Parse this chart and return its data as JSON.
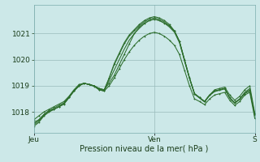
{
  "background_color": "#cce8e8",
  "plot_bg_color": "#cce8e8",
  "grid_color": "#99bbbb",
  "line_color": "#2d6e2d",
  "ylim": [
    1017.2,
    1022.1
  ],
  "yticks": [
    1018,
    1019,
    1020,
    1021
  ],
  "xlabel": "Pression niveau de la mer( hPa )",
  "xtick_labels": [
    "Jeu",
    "Ven",
    "S"
  ],
  "xtick_positions": [
    0,
    24,
    44
  ],
  "label_fontsize": 7,
  "tick_fontsize": 6.5,
  "series": [
    [
      1017.6,
      1017.7,
      1017.9,
      1018.05,
      1018.1,
      1018.2,
      1018.3,
      1018.55,
      1018.8,
      1019.0,
      1019.1,
      1019.05,
      1019.0,
      1018.9,
      1018.85,
      1019.1,
      1019.4,
      1019.8,
      1020.2,
      1020.6,
      1021.0,
      1021.25,
      1021.4,
      1021.5,
      1021.55,
      1021.5,
      1021.4,
      1021.3,
      1021.1,
      1020.7,
      1020.0,
      1019.3,
      1018.7,
      1018.55,
      1018.4,
      1018.65,
      1018.8,
      1018.85,
      1018.9,
      1018.55,
      1018.35,
      1018.5,
      1018.7,
      1018.8,
      1017.9
    ],
    [
      1017.5,
      1017.65,
      1017.85,
      1018.0,
      1018.1,
      1018.2,
      1018.3,
      1018.55,
      1018.8,
      1019.0,
      1019.1,
      1019.05,
      1019.0,
      1018.9,
      1018.85,
      1019.3,
      1019.8,
      1020.2,
      1020.6,
      1020.9,
      1021.1,
      1021.3,
      1021.45,
      1021.55,
      1021.6,
      1021.55,
      1021.45,
      1021.3,
      1021.1,
      1020.7,
      1020.0,
      1019.3,
      1018.7,
      1018.55,
      1018.4,
      1018.65,
      1018.8,
      1018.85,
      1018.9,
      1018.55,
      1018.35,
      1018.5,
      1018.75,
      1018.9,
      1017.85
    ],
    [
      1017.7,
      1017.85,
      1018.0,
      1018.1,
      1018.2,
      1018.3,
      1018.4,
      1018.6,
      1018.85,
      1019.05,
      1019.1,
      1019.05,
      1019.0,
      1018.85,
      1018.8,
      1019.3,
      1019.85,
      1020.25,
      1020.65,
      1020.95,
      1021.15,
      1021.35,
      1021.5,
      1021.6,
      1021.65,
      1021.6,
      1021.5,
      1021.35,
      1021.1,
      1020.7,
      1020.0,
      1019.3,
      1018.7,
      1018.55,
      1018.4,
      1018.65,
      1018.85,
      1018.9,
      1018.95,
      1018.65,
      1018.45,
      1018.6,
      1018.85,
      1019.0,
      1017.95
    ],
    [
      1017.55,
      1017.7,
      1017.9,
      1018.05,
      1018.15,
      1018.25,
      1018.35,
      1018.58,
      1018.82,
      1019.02,
      1019.1,
      1019.05,
      1019.0,
      1018.88,
      1018.82,
      1019.2,
      1019.6,
      1020.0,
      1020.4,
      1020.75,
      1021.0,
      1021.2,
      1021.38,
      1021.5,
      1021.55,
      1021.5,
      1021.4,
      1021.25,
      1021.05,
      1020.65,
      1019.95,
      1019.28,
      1018.68,
      1018.53,
      1018.38,
      1018.63,
      1018.78,
      1018.83,
      1018.88,
      1018.53,
      1018.33,
      1018.48,
      1018.72,
      1018.85,
      1017.88
    ],
    [
      1017.45,
      1017.6,
      1017.85,
      1018.0,
      1018.1,
      1018.2,
      1018.32,
      1018.55,
      1018.82,
      1019.0,
      1019.1,
      1019.05,
      1018.98,
      1018.85,
      1018.8,
      1019.0,
      1019.3,
      1019.65,
      1020.0,
      1020.3,
      1020.55,
      1020.75,
      1020.9,
      1021.0,
      1021.05,
      1021.0,
      1020.9,
      1020.75,
      1020.55,
      1020.2,
      1019.6,
      1019.0,
      1018.5,
      1018.4,
      1018.28,
      1018.5,
      1018.65,
      1018.7,
      1018.75,
      1018.45,
      1018.25,
      1018.4,
      1018.65,
      1018.75,
      1017.75
    ]
  ],
  "marker_series": [
    0,
    2,
    4
  ],
  "marker": "D",
  "markersize": 1.2,
  "linewidth": 0.75
}
